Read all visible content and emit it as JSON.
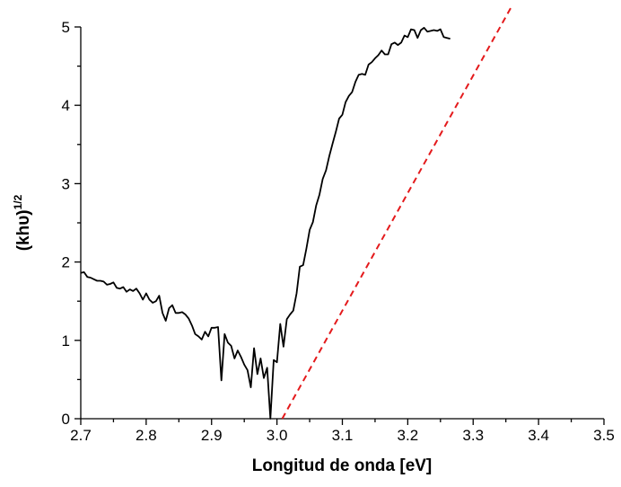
{
  "chart_data": {
    "type": "line",
    "title": "",
    "xlabel": "Longitud de onda [eV]",
    "ylabel": "(khυ)",
    "ylabel_sup": "1/2",
    "xlim": [
      2.7,
      3.5
    ],
    "ylim": [
      0,
      5
    ],
    "x_ticks": [
      "2.7",
      "2.8",
      "2.9",
      "3.0",
      "3.1",
      "3.2",
      "3.3",
      "3.4",
      "3.5"
    ],
    "x_tick_values": [
      2.7,
      2.8,
      2.9,
      3.0,
      3.1,
      3.2,
      3.3,
      3.4,
      3.5
    ],
    "y_ticks": [
      "0",
      "1",
      "2",
      "3",
      "4",
      "5"
    ],
    "y_tick_values": [
      0,
      1,
      2,
      3,
      4,
      5
    ],
    "grid": false,
    "legend": "none",
    "series": [
      {
        "style": "solid",
        "color": "#000000",
        "points": [
          [
            2.7,
            1.86
          ],
          [
            2.705,
            1.87
          ],
          [
            2.71,
            1.81
          ],
          [
            2.715,
            1.8
          ],
          [
            2.72,
            1.78
          ],
          [
            2.725,
            1.76
          ],
          [
            2.73,
            1.76
          ],
          [
            2.735,
            1.75
          ],
          [
            2.74,
            1.71
          ],
          [
            2.745,
            1.72
          ],
          [
            2.75,
            1.74
          ],
          [
            2.755,
            1.67
          ],
          [
            2.76,
            1.66
          ],
          [
            2.765,
            1.68
          ],
          [
            2.77,
            1.62
          ],
          [
            2.775,
            1.65
          ],
          [
            2.78,
            1.63
          ],
          [
            2.785,
            1.66
          ],
          [
            2.79,
            1.6
          ],
          [
            2.795,
            1.52
          ],
          [
            2.8,
            1.6
          ],
          [
            2.805,
            1.52
          ],
          [
            2.81,
            1.48
          ],
          [
            2.815,
            1.5
          ],
          [
            2.82,
            1.57
          ],
          [
            2.825,
            1.35
          ],
          [
            2.83,
            1.25
          ],
          [
            2.835,
            1.41
          ],
          [
            2.84,
            1.45
          ],
          [
            2.845,
            1.35
          ],
          [
            2.85,
            1.35
          ],
          [
            2.855,
            1.36
          ],
          [
            2.86,
            1.33
          ],
          [
            2.865,
            1.28
          ],
          [
            2.87,
            1.19
          ],
          [
            2.875,
            1.08
          ],
          [
            2.88,
            1.05
          ],
          [
            2.885,
            1.01
          ],
          [
            2.89,
            1.11
          ],
          [
            2.895,
            1.05
          ],
          [
            2.9,
            1.16
          ],
          [
            2.905,
            1.16
          ],
          [
            2.91,
            1.17
          ],
          [
            2.915,
            0.49
          ],
          [
            2.92,
            1.08
          ],
          [
            2.925,
            0.97
          ],
          [
            2.93,
            0.93
          ],
          [
            2.935,
            0.77
          ],
          [
            2.94,
            0.87
          ],
          [
            2.945,
            0.79
          ],
          [
            2.95,
            0.69
          ],
          [
            2.955,
            0.62
          ],
          [
            2.96,
            0.4
          ],
          [
            2.965,
            0.9
          ],
          [
            2.97,
            0.57
          ],
          [
            2.975,
            0.77
          ],
          [
            2.98,
            0.52
          ],
          [
            2.985,
            0.65
          ],
          [
            2.99,
            0.0
          ],
          [
            2.995,
            0.75
          ],
          [
            3.0,
            0.72
          ],
          [
            3.005,
            1.21
          ],
          [
            3.01,
            0.92
          ],
          [
            3.015,
            1.27
          ],
          [
            3.02,
            1.33
          ],
          [
            3.025,
            1.38
          ],
          [
            3.03,
            1.6
          ],
          [
            3.035,
            1.94
          ],
          [
            3.04,
            1.96
          ],
          [
            3.045,
            2.17
          ],
          [
            3.05,
            2.41
          ],
          [
            3.055,
            2.51
          ],
          [
            3.06,
            2.72
          ],
          [
            3.065,
            2.86
          ],
          [
            3.07,
            3.06
          ],
          [
            3.075,
            3.17
          ],
          [
            3.08,
            3.35
          ],
          [
            3.085,
            3.51
          ],
          [
            3.09,
            3.66
          ],
          [
            3.095,
            3.83
          ],
          [
            3.1,
            3.88
          ],
          [
            3.105,
            4.04
          ],
          [
            3.11,
            4.12
          ],
          [
            3.115,
            4.17
          ],
          [
            3.12,
            4.3
          ],
          [
            3.125,
            4.39
          ],
          [
            3.13,
            4.4
          ],
          [
            3.135,
            4.39
          ],
          [
            3.14,
            4.52
          ],
          [
            3.145,
            4.55
          ],
          [
            3.15,
            4.6
          ],
          [
            3.155,
            4.64
          ],
          [
            3.16,
            4.7
          ],
          [
            3.165,
            4.65
          ],
          [
            3.17,
            4.65
          ],
          [
            3.175,
            4.78
          ],
          [
            3.18,
            4.8
          ],
          [
            3.185,
            4.77
          ],
          [
            3.19,
            4.8
          ],
          [
            3.195,
            4.89
          ],
          [
            3.2,
            4.87
          ],
          [
            3.205,
            4.97
          ],
          [
            3.21,
            4.96
          ],
          [
            3.215,
            4.86
          ],
          [
            3.22,
            4.96
          ],
          [
            3.225,
            4.99
          ],
          [
            3.23,
            4.94
          ],
          [
            3.235,
            4.95
          ],
          [
            3.24,
            4.96
          ],
          [
            3.245,
            4.95
          ],
          [
            3.25,
            4.97
          ],
          [
            3.255,
            4.87
          ],
          [
            3.26,
            4.86
          ],
          [
            3.265,
            4.85
          ]
        ]
      },
      {
        "style": "dashed",
        "color": "#e41a1c",
        "points": [
          [
            3.008,
            0.0
          ],
          [
            3.358,
            5.25
          ]
        ]
      }
    ]
  }
}
